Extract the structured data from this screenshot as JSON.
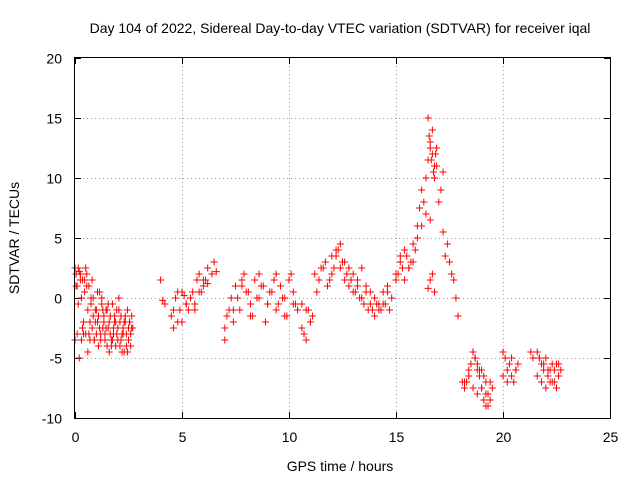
{
  "chart_data": {
    "type": "scatter",
    "title": "Day 104 of 2022, Sidereal Day-to-day VTEC variation (SDTVAR) for receiver iqal",
    "xlabel": "GPS time / hours",
    "ylabel": "SDTVAR / TECUs",
    "xlim": [
      0,
      25
    ],
    "ylim": [
      -10,
      20
    ],
    "xticks": [
      0,
      5,
      10,
      15,
      20,
      25
    ],
    "yticks": [
      -10,
      -5,
      0,
      5,
      10,
      15,
      20
    ],
    "grid": true,
    "marker": "+",
    "color": "#ff0000",
    "series": [
      {
        "name": "SDTVAR",
        "x": [
          0.0,
          0.05,
          0.1,
          0.15,
          0.2,
          0.25,
          0.3,
          0.35,
          0.4,
          0.45,
          0.5,
          0.55,
          0.6,
          0.65,
          0.7,
          0.75,
          0.8,
          0.85,
          0.9,
          0.95,
          1.0,
          1.05,
          1.1,
          1.15,
          1.2,
          1.25,
          1.3,
          1.35,
          1.4,
          1.45,
          1.5,
          1.55,
          1.6,
          1.65,
          1.7,
          1.75,
          1.8,
          1.85,
          1.9,
          1.95,
          2.0,
          2.05,
          2.1,
          2.15,
          2.2,
          2.25,
          2.3,
          2.35,
          2.4,
          2.45,
          2.5,
          2.55,
          2.6,
          2.65,
          2.7,
          0.0,
          0.1,
          0.2,
          0.3,
          0.4,
          0.5,
          0.6,
          0.7,
          0.8,
          0.9,
          1.0,
          1.1,
          1.2,
          1.3,
          1.4,
          1.5,
          1.6,
          1.7,
          1.8,
          1.9,
          2.0,
          2.1,
          2.2,
          2.3,
          2.4,
          2.5,
          2.6,
          0.05,
          0.15,
          0.25,
          0.35,
          0.45,
          0.55,
          0.65,
          0.75,
          0.85,
          0.95,
          1.05,
          1.15,
          1.25,
          1.35,
          1.45,
          1.55,
          1.65,
          1.75,
          1.85,
          1.95,
          2.05,
          2.15,
          2.25,
          2.35,
          2.45,
          2.55,
          2.65,
          4.0,
          4.1,
          4.2,
          4.5,
          4.6,
          4.7,
          4.8,
          4.9,
          5.0,
          5.1,
          5.2,
          5.3,
          5.5,
          5.6,
          5.7,
          5.8,
          5.9,
          6.0,
          6.1,
          6.2,
          6.4,
          6.5,
          6.6,
          4.6,
          4.8,
          5.0,
          5.2,
          5.4,
          5.6,
          5.8,
          6.0,
          6.2,
          7.0,
          7.2,
          7.4,
          7.6,
          7.8,
          8.0,
          8.2,
          8.4,
          8.6,
          8.8,
          9.0,
          9.2,
          9.4,
          9.6,
          9.8,
          10.0,
          10.2,
          10.4,
          7.1,
          7.3,
          7.5,
          7.7,
          7.9,
          8.1,
          8.3,
          8.5,
          8.7,
          8.9,
          9.1,
          9.3,
          9.5,
          9.7,
          9.9,
          10.1,
          10.3,
          7.0,
          7.4,
          7.8,
          8.2,
          8.6,
          9.0,
          9.4,
          9.8,
          10.2,
          10.6,
          10.8,
          11.0,
          10.6,
          10.7,
          10.8,
          10.9,
          11.0,
          11.1,
          11.2,
          11.4,
          11.6,
          11.8,
          12.0,
          12.2,
          12.4,
          12.6,
          12.8,
          13.0,
          13.2,
          13.4,
          13.6,
          13.8,
          14.0,
          14.2,
          14.4,
          14.6,
          14.8,
          11.3,
          11.5,
          11.7,
          11.9,
          12.1,
          12.3,
          12.5,
          12.7,
          12.9,
          13.1,
          13.3,
          13.5,
          13.7,
          13.9,
          14.1,
          14.3,
          14.5,
          14.7,
          12.0,
          12.2,
          12.4,
          12.6,
          12.8,
          13.0,
          13.2,
          13.4,
          13.6,
          13.8,
          14.0,
          14.2,
          14.4,
          14.6,
          15.0,
          15.1,
          15.2,
          15.3,
          15.4,
          15.5,
          15.6,
          15.7,
          15.8,
          15.9,
          15.0,
          15.2,
          15.4,
          15.6,
          15.8,
          16.0,
          16.2,
          16.4,
          16.6,
          16.0,
          16.1,
          16.2,
          16.3,
          16.4,
          16.5,
          16.6,
          16.7,
          16.8,
          16.9,
          17.0,
          17.1,
          17.2,
          16.5,
          16.6,
          16.7,
          16.8,
          16.9,
          16.55,
          16.65,
          16.75,
          16.85,
          16.5,
          16.6,
          16.7,
          16.8,
          17.2,
          17.3,
          17.4,
          17.5,
          17.6,
          17.7,
          17.8,
          17.9,
          18.1,
          18.2,
          18.3,
          18.4,
          18.5,
          18.6,
          18.7,
          18.8,
          18.9,
          19.0,
          19.1,
          19.2,
          19.3,
          19.4,
          19.5,
          18.6,
          18.7,
          18.8,
          18.9,
          19.0,
          19.1,
          19.2,
          19.3,
          18.2,
          18.4,
          18.6,
          18.8,
          19.0,
          19.2,
          19.4,
          20.0,
          20.1,
          20.2,
          20.3,
          20.4,
          20.5,
          20.6,
          20.7,
          20.0,
          20.2,
          20.4,
          20.6,
          21.3,
          21.4,
          21.6,
          21.7,
          21.8,
          21.9,
          22.0,
          22.1,
          22.2,
          22.3,
          22.4,
          22.5,
          22.6,
          22.7,
          21.6,
          21.8,
          22.0,
          22.2,
          22.4,
          22.6,
          21.7,
          21.9,
          22.1,
          22.3,
          22.5
        ],
        "y": [
          2.5,
          2.0,
          1.0,
          -0.5,
          2.2,
          1.5,
          0.0,
          -2.5,
          -3.0,
          1.5,
          2.5,
          1.0,
          -1.0,
          -3.0,
          -2.0,
          0.0,
          1.5,
          -1.5,
          -3.5,
          -2.0,
          -1.0,
          0.5,
          -1.5,
          -2.5,
          -3.0,
          0.0,
          -1.0,
          -2.0,
          -3.5,
          -2.5,
          -1.0,
          -0.5,
          -2.0,
          -3.0,
          -4.0,
          -3.5,
          -2.5,
          -1.5,
          -2.0,
          -3.0,
          -2.5,
          -1.0,
          -2.0,
          -3.5,
          -4.5,
          -3.0,
          -2.0,
          -1.5,
          -3.0,
          -4.5,
          -2.5,
          -2.0,
          -3.0,
          -1.5,
          -2.5,
          -3.5,
          -3.0,
          -5.0,
          -3.5,
          -2.0,
          -3.0,
          -4.5,
          -3.5,
          -2.5,
          -3.5,
          -3.0,
          -4.0,
          -3.5,
          -2.5,
          -3.0,
          -4.0,
          -4.5,
          -3.5,
          -3.0,
          -4.0,
          -3.5,
          -4.0,
          -3.0,
          -4.5,
          -4.0,
          -3.5,
          -4.0,
          1.0,
          2.5,
          2.0,
          1.5,
          0.5,
          2.0,
          1.0,
          -0.5,
          0.0,
          -1.0,
          -2.0,
          0.5,
          -0.5,
          -1.5,
          -1.0,
          -2.5,
          -1.5,
          -0.5,
          -2.0,
          -1.0,
          0.0,
          -1.5,
          -2.5,
          -2.0,
          -1.0,
          -2.0,
          -2.5,
          1.5,
          -0.2,
          -0.5,
          -1.5,
          -2.5,
          0.0,
          0.5,
          -1.0,
          -2.0,
          0.2,
          -0.5,
          -1.0,
          0.5,
          -0.5,
          1.5,
          2.0,
          0.5,
          1.0,
          1.5,
          2.5,
          2.0,
          3.0,
          2.2,
          -1.0,
          -2.0,
          0.5,
          -0.5,
          0.0,
          -1.0,
          0.5,
          1.5,
          1.2,
          -3.5,
          -1.0,
          -2.0,
          0.0,
          1.0,
          0.5,
          -0.5,
          1.5,
          0.0,
          1.0,
          -0.5,
          0.5,
          2.0,
          1.0,
          0.0,
          1.5,
          -0.5,
          -1.0,
          -1.5,
          0.0,
          1.0,
          -1.0,
          2.0,
          0.5,
          -1.5,
          0.0,
          1.0,
          -2.0,
          0.5,
          1.5,
          -0.5,
          0.0,
          -1.5,
          2.0,
          -0.5,
          -2.5,
          -1.0,
          1.5,
          -1.5,
          2.0,
          -0.5,
          -1.0,
          -1.5,
          0.5,
          -0.5,
          -1.0,
          -2.0,
          -2.5,
          -3.0,
          -3.5,
          -1.0,
          -2.0,
          -1.5,
          2.0,
          1.5,
          2.5,
          1.0,
          2.0,
          3.5,
          4.5,
          3.0,
          2.5,
          2.0,
          1.5,
          2.5,
          1.0,
          0.5,
          0.0,
          -0.5,
          0.5,
          1.0,
          0.0,
          0.5,
          2.5,
          3.0,
          1.5,
          2.5,
          4.0,
          3.0,
          2.0,
          1.5,
          0.5,
          0.0,
          -0.5,
          -1.0,
          -1.0,
          -0.5,
          -1.0,
          -0.5,
          -1.0,
          3.5,
          4.0,
          2.5,
          1.5,
          1.0,
          0.5,
          1.0,
          0.0,
          0.5,
          -0.5,
          -1.5,
          -1.0,
          -0.5,
          0.5,
          1.5,
          2.0,
          3.0,
          2.5,
          4.0,
          3.5,
          2.5,
          3.0,
          4.5,
          4.0,
          2.0,
          3.5,
          1.5,
          2.5,
          3.0,
          5.0,
          6.0,
          7.0,
          6.5,
          6.0,
          7.5,
          9.0,
          8.0,
          10.0,
          11.5,
          13.0,
          12.0,
          10.0,
          11.0,
          8.0,
          9.0,
          10.5,
          15.0,
          12.5,
          14.0,
          11.0,
          12.5,
          13.5,
          11.5,
          10.5,
          12.0,
          0.8,
          1.5,
          2.0,
          0.5,
          5.5,
          3.5,
          4.5,
          3.0,
          2.0,
          1.5,
          0.0,
          -1.5,
          -7.0,
          -7.5,
          -7.0,
          -6.0,
          -5.5,
          -4.5,
          -5.0,
          -6.0,
          -6.5,
          -7.5,
          -8.5,
          -9.0,
          -8.0,
          -7.0,
          -7.5,
          -4.5,
          -5.0,
          -5.5,
          -6.0,
          -7.5,
          -6.5,
          -8.0,
          -9.0,
          -7.0,
          -6.5,
          -7.5,
          -8.0,
          -6.0,
          -7.0,
          -8.5,
          -4.5,
          -5.0,
          -6.0,
          -5.5,
          -6.5,
          -7.0,
          -6.0,
          -5.5,
          -6.5,
          -7.0,
          -5.0,
          -6.0,
          -4.5,
          -5.0,
          -4.5,
          -5.0,
          -5.5,
          -6.0,
          -5.0,
          -6.5,
          -7.0,
          -5.5,
          -6.0,
          -7.5,
          -5.5,
          -6.0,
          -6.5,
          -7.0,
          -7.5,
          -6.0,
          -7.0,
          -6.5,
          -5.0,
          -5.5,
          -6.0,
          -7.0,
          -5.5
        ]
      }
    ]
  }
}
